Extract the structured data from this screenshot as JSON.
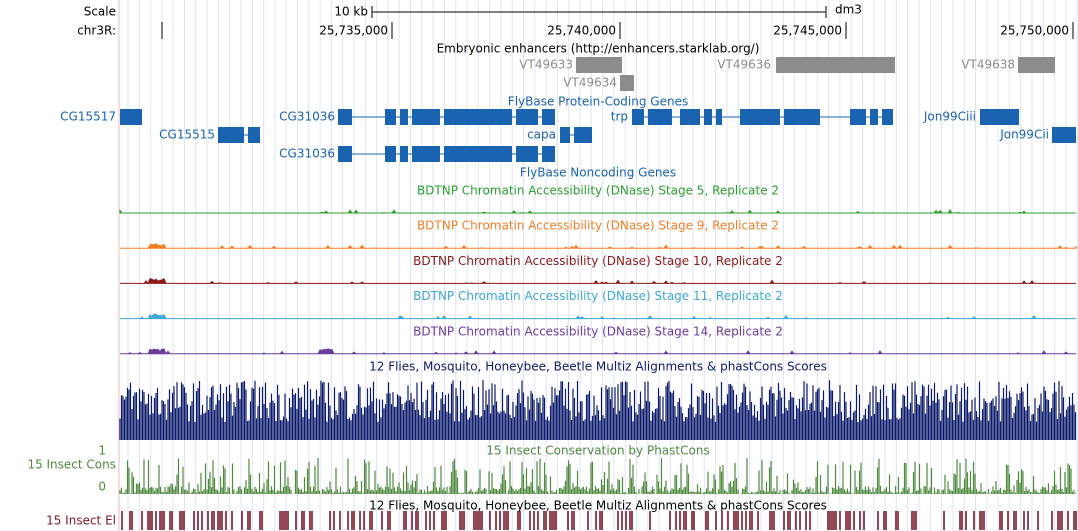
{
  "ruler": {
    "scale_label": "Scale",
    "chrom_label": "chr3R:",
    "scale_bar": "10 kb",
    "assembly": "dm3",
    "positions": [
      "25,735,000",
      "25,740,000",
      "25,745,000",
      "25,750,000"
    ]
  },
  "enhancers": {
    "title": "Embryonic enhancers (http://enhancers.starklab.org/)",
    "items": [
      "VT49633",
      "VT49634",
      "VT49636",
      "VT49638"
    ]
  },
  "genes": {
    "title": "FlyBase Protein-Coding Genes",
    "items": [
      "CG15517",
      "CG15515",
      "CG31036",
      "CG31036",
      "capa",
      "trp",
      "Jon99Ciii",
      "Jon99Cii"
    ]
  },
  "noncoding": {
    "title": "FlyBase Noncoding Genes"
  },
  "dnase": [
    "BDTNP Chromatin Accessibility (DNase) Stage 5, Replicate 2",
    "BDTNP Chromatin Accessibility (DNase) Stage 9, Replicate 2",
    "BDTNP Chromatin Accessibility (DNase) Stage 10, Replicate 2",
    "BDTNP Chromatin Accessibility (DNase) Stage 11, Replicate 2",
    "BDTNP Chromatin Accessibility (DNase) Stage 14, Replicate 2"
  ],
  "multiz": {
    "title": "12 Flies, Mosquito, Honeybee, Beetle Multiz Alignments & phastCons Scores"
  },
  "phastcons": {
    "title": "15 Insect Conservation by PhastCons",
    "side_label": "15 Insect Cons",
    "y_max": "1",
    "y_min": "0"
  },
  "elements": {
    "title": "12 Flies, Mosquito, Honeybee, Beetle Multiz Alignments & phastCons Scores",
    "side_label": "15 Insect El"
  }
}
